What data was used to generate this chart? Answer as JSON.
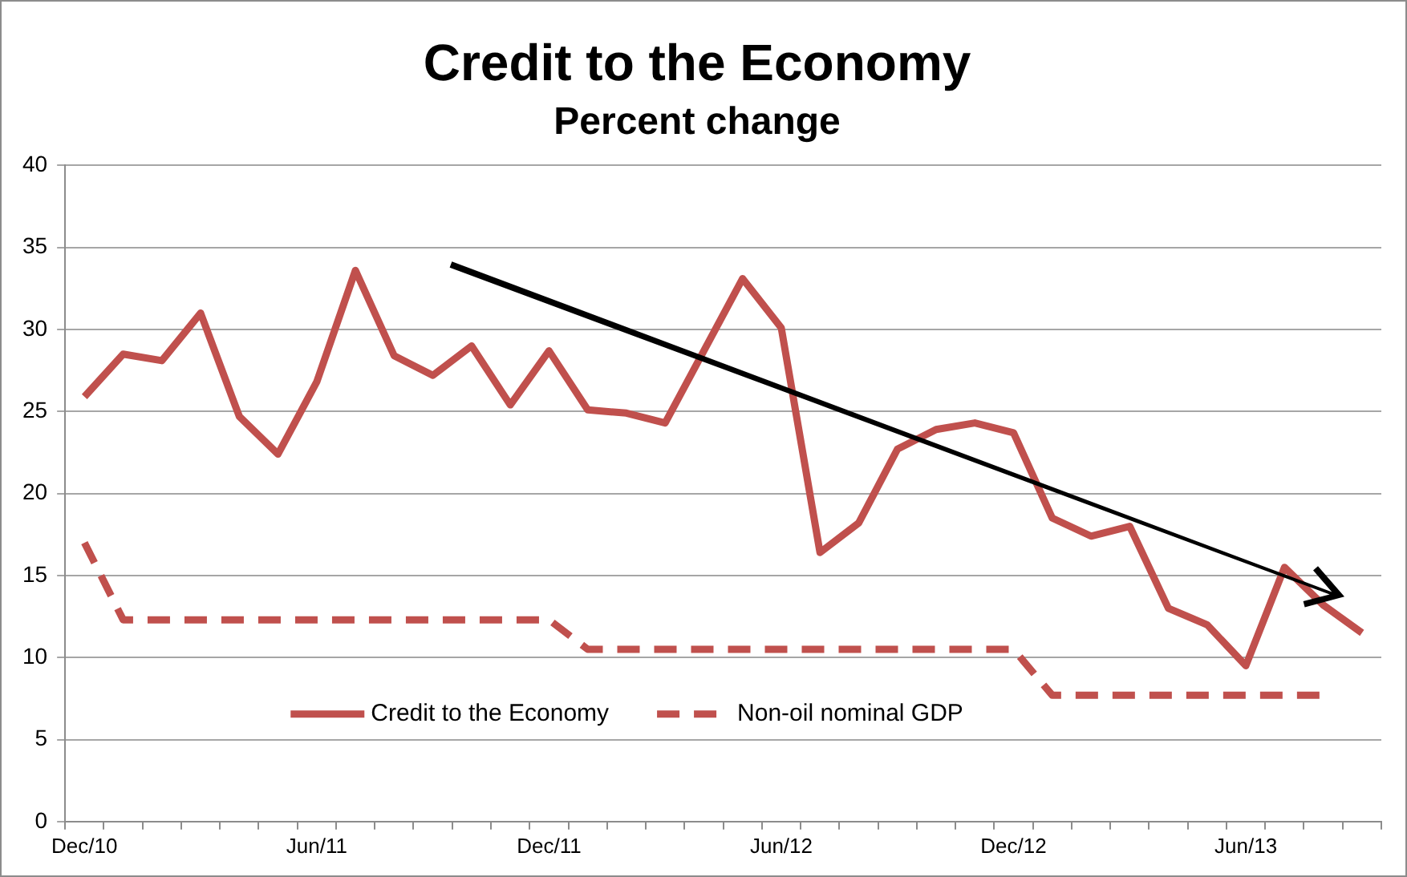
{
  "chart_data": {
    "type": "line",
    "title": "Credit to the Economy",
    "subtitle": "Percent change",
    "categories": [
      "Dec/10",
      null,
      null,
      null,
      null,
      null,
      "Jun/11",
      null,
      null,
      null,
      null,
      null,
      "Dec/11",
      null,
      null,
      null,
      null,
      null,
      "Jun/12",
      null,
      null,
      null,
      null,
      null,
      "Dec/12",
      null,
      null,
      null,
      null,
      null,
      "Jun/13",
      null,
      null,
      null
    ],
    "series": [
      {
        "name": "Credit to the Economy",
        "color": "#c0504d",
        "line_style": "solid",
        "values": [
          25.9,
          28.5,
          28.1,
          31.0,
          24.7,
          22.4,
          26.8,
          33.6,
          28.4,
          27.2,
          29.0,
          25.4,
          28.7,
          25.1,
          24.9,
          24.3,
          28.7,
          33.1,
          30.1,
          16.4,
          18.2,
          22.7,
          23.9,
          24.3,
          23.7,
          18.5,
          17.4,
          18.0,
          13.0,
          12.0,
          9.5,
          15.5,
          13.2,
          11.5
        ]
      },
      {
        "name": "Non-oil nominal GDP",
        "color": "#c0504d",
        "line_style": "dashed",
        "values": [
          17.0,
          12.3,
          12.3,
          12.3,
          12.3,
          12.3,
          12.3,
          12.3,
          12.3,
          12.3,
          12.3,
          12.3,
          12.3,
          10.5,
          10.5,
          10.5,
          10.5,
          10.5,
          10.5,
          10.5,
          10.5,
          10.5,
          10.5,
          10.5,
          10.5,
          7.7,
          7.7,
          7.7,
          7.7,
          7.7,
          7.7,
          7.7,
          7.7,
          null
        ]
      }
    ],
    "ylim": [
      0,
      40
    ],
    "yticks": [
      0,
      5,
      10,
      15,
      20,
      25,
      30,
      35,
      40
    ],
    "grid": "y",
    "legend": "bottom",
    "marker": "none"
  }
}
